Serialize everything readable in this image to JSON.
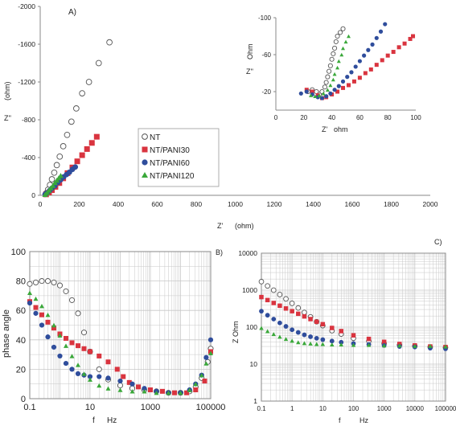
{
  "colors": {
    "NT": "#ffffff",
    "NT/PANI30": "#d9343f",
    "NT/PANI60": "#2f4d9c",
    "NT/PANI120": "#3aa83a",
    "NT_stroke": "#555555",
    "grid": "#c8c8c8"
  },
  "legend": [
    "NT",
    "NT/PANI30",
    "NT/PANI60",
    "NT/PANI120"
  ],
  "chart_data": [
    {
      "id": "A",
      "type": "scatter",
      "panel_label": "A)",
      "xlabel": "Z'",
      "xlabel_unit": "(ohm)",
      "ylabel": "Z''",
      "ylabel_unit": "(ohm)",
      "xlim": [
        0,
        2000
      ],
      "ylim": [
        0,
        -2000
      ],
      "xticks": [
        "0",
        "200",
        "400",
        "600",
        "800",
        "1000",
        "1200",
        "1400",
        "1600",
        "1800",
        "2000"
      ],
      "yticks": [
        "0",
        "-400",
        "-800",
        "-1200",
        "-1600",
        "-2000"
      ],
      "ytick_values": [
        0,
        -400,
        -800,
        -1200,
        -1600,
        -2000
      ],
      "grid": false,
      "legend_position": "center",
      "series": [
        {
          "name": "NT",
          "marker": "circle",
          "x": [
            30,
            40,
            50,
            60,
            72,
            85,
            100,
            118,
            138,
            160,
            185,
            215,
            250,
            300,
            355
          ],
          "y": [
            -20,
            -60,
            -110,
            -170,
            -240,
            -320,
            -410,
            -520,
            -640,
            -780,
            -920,
            -1080,
            -1200,
            -1400,
            -1620
          ]
        },
        {
          "name": "NT/PANI30",
          "marker": "square",
          "x": [
            30,
            45,
            60,
            78,
            98,
            118,
            140,
            165,
            190,
            215,
            240,
            265,
            290
          ],
          "y": [
            -10,
            -30,
            -55,
            -90,
            -130,
            -180,
            -235,
            -295,
            -360,
            -425,
            -490,
            -555,
            -620
          ]
        },
        {
          "name": "NT/PANI60",
          "marker": "circle",
          "x": [
            25,
            35,
            48,
            60,
            75,
            90,
            105,
            120,
            135,
            150,
            165,
            180
          ],
          "y": [
            -10,
            -25,
            -50,
            -75,
            -100,
            -135,
            -165,
            -195,
            -220,
            -245,
            -275,
            -300
          ]
        },
        {
          "name": "NT/PANI120",
          "marker": "triangle",
          "x": [
            25,
            35,
            45,
            55,
            65,
            75,
            85,
            95,
            105
          ],
          "y": [
            -10,
            -30,
            -55,
            -80,
            -105,
            -135,
            -160,
            -185,
            -210
          ]
        }
      ]
    },
    {
      "id": "A-inset",
      "type": "scatter",
      "xlabel": "Z'",
      "xlabel_unit": "ohm",
      "ylabel": "Z''",
      "ylabel_unit": "Ohm",
      "xlim": [
        0,
        100
      ],
      "ylim": [
        0,
        -100
      ],
      "xticks": [
        "0",
        "20",
        "40",
        "60",
        "80",
        "100"
      ],
      "yticks": [
        "-20",
        "-60",
        "-100"
      ],
      "ytick_values": [
        -20,
        -60,
        -100
      ],
      "grid": false,
      "series": [
        {
          "name": "NT",
          "marker": "circle",
          "x": [
            23,
            26,
            29,
            31,
            33,
            35,
            36,
            37,
            38,
            39,
            40,
            41,
            42,
            43,
            44,
            46,
            48
          ],
          "y": [
            -20,
            -22,
            -20,
            -17,
            -20,
            -25,
            -30,
            -36,
            -42,
            -48,
            -55,
            -61,
            -67,
            -74,
            -80,
            -84,
            -88
          ]
        },
        {
          "name": "NT/PANI30",
          "marker": "square",
          "x": [
            22,
            26,
            30,
            33,
            36,
            40,
            44,
            48,
            52,
            56,
            60,
            64,
            68,
            72,
            76,
            80,
            84,
            88,
            92,
            96,
            98
          ],
          "y": [
            -22,
            -20,
            -16,
            -13,
            -14,
            -17,
            -20,
            -24,
            -27,
            -31,
            -35,
            -40,
            -44,
            -49,
            -54,
            -59,
            -63,
            -68,
            -72,
            -77,
            -80
          ]
        },
        {
          "name": "NT/PANI60",
          "marker": "circle",
          "x": [
            18,
            22,
            26,
            30,
            33,
            36,
            39,
            42,
            45,
            48,
            51,
            54,
            57,
            60,
            63,
            66,
            69,
            72,
            75,
            78
          ],
          "y": [
            -18,
            -20,
            -17,
            -14,
            -13,
            -15,
            -18,
            -22,
            -26,
            -31,
            -36,
            -41,
            -47,
            -53,
            -59,
            -65,
            -71,
            -78,
            -85,
            -93
          ]
        },
        {
          "name": "NT/PANI120",
          "marker": "triangle",
          "x": [
            25,
            28,
            31,
            34,
            37,
            39,
            41,
            42,
            44,
            45,
            47,
            48,
            50,
            52
          ],
          "y": [
            -16,
            -15,
            -16,
            -18,
            -22,
            -27,
            -33,
            -39,
            -46,
            -53,
            -60,
            -67,
            -74,
            -80
          ]
        }
      ]
    },
    {
      "id": "B",
      "type": "line",
      "panel_label": "B)",
      "xlabel": "f",
      "xlabel_unit": "Hz",
      "ylabel": "phase angle",
      "xscale": "log",
      "xlim": [
        0.1,
        100000
      ],
      "ylim": [
        0,
        100
      ],
      "xticks": [
        "0.1",
        "10",
        "1000",
        "100000"
      ],
      "xtick_values": [
        0.1,
        10,
        1000,
        100000
      ],
      "yticks": [
        "0",
        "20",
        "40",
        "60",
        "80",
        "100"
      ],
      "grid": true,
      "series": [
        {
          "name": "NT",
          "marker": "circle",
          "logx": [
            -1,
            -0.8,
            -0.6,
            -0.4,
            -0.2,
            0,
            0.2,
            0.4,
            0.6,
            0.8,
            1,
            1.3,
            1.6,
            2,
            2.4,
            2.8,
            3.2,
            3.6,
            4,
            4.3,
            4.5,
            4.7,
            4.9,
            5
          ],
          "y": [
            78,
            79,
            80,
            80,
            79,
            77,
            73,
            67,
            58,
            45,
            32,
            20,
            13,
            9,
            7,
            6,
            5,
            4,
            4,
            5,
            8,
            14,
            25,
            34
          ]
        },
        {
          "name": "NT/PANI30",
          "marker": "square",
          "logx": [
            -1,
            -0.8,
            -0.6,
            -0.4,
            -0.2,
            0,
            0.2,
            0.4,
            0.6,
            0.8,
            1,
            1.3,
            1.6,
            1.9,
            2.1,
            2.3,
            2.6,
            3,
            3.4,
            3.8,
            4.2,
            4.5,
            4.8,
            5
          ],
          "y": [
            66,
            62,
            57,
            52,
            48,
            44,
            41,
            38,
            36,
            34,
            32,
            29,
            25,
            20,
            15,
            11,
            8,
            6,
            5,
            4,
            4,
            6,
            12,
            32
          ]
        },
        {
          "name": "NT/PANI60",
          "marker": "circle",
          "logx": [
            -1,
            -0.8,
            -0.6,
            -0.4,
            -0.2,
            0,
            0.2,
            0.4,
            0.6,
            0.8,
            1,
            1.3,
            1.6,
            2,
            2.4,
            2.8,
            3.2,
            3.6,
            4,
            4.3,
            4.5,
            4.7,
            4.85,
            5
          ],
          "y": [
            65,
            58,
            50,
            42,
            35,
            29,
            24,
            20,
            17,
            16,
            15,
            15,
            14,
            12,
            10,
            7,
            5,
            4,
            4,
            6,
            10,
            16,
            28,
            40
          ]
        },
        {
          "name": "NT/PANI120",
          "marker": "triangle",
          "logx": [
            -1,
            -0.8,
            -0.6,
            -0.4,
            -0.2,
            0,
            0.2,
            0.4,
            0.6,
            0.8,
            1,
            1.3,
            1.6,
            2,
            2.4,
            2.8,
            3.2,
            3.6,
            4,
            4.3,
            4.5,
            4.7,
            4.85,
            5
          ],
          "y": [
            72,
            68,
            63,
            57,
            50,
            43,
            36,
            29,
            23,
            17,
            13,
            9,
            7,
            6,
            5,
            5,
            4,
            4,
            4,
            6,
            10,
            16,
            24,
            31
          ]
        }
      ]
    },
    {
      "id": "C",
      "type": "line",
      "panel_label": "C)",
      "xlabel": "f",
      "xlabel_unit": "Hz",
      "ylabel": "Z Ohm",
      "xscale": "log",
      "yscale": "log",
      "xlim": [
        0.1,
        100000
      ],
      "ylim": [
        1,
        10000
      ],
      "xticks": [
        "0.1",
        "1",
        "10",
        "100",
        "1000",
        "10000",
        "100000"
      ],
      "xtick_values": [
        0.1,
        1,
        10,
        100,
        1000,
        10000,
        100000
      ],
      "yticks": [
        "1",
        "10",
        "100",
        "1000",
        "10000"
      ],
      "ytick_values": [
        1,
        10,
        100,
        1000,
        10000
      ],
      "grid": true,
      "series": [
        {
          "name": "NT",
          "marker": "circle",
          "logx": [
            -1,
            -0.8,
            -0.6,
            -0.4,
            -0.2,
            0,
            0.2,
            0.4,
            0.6,
            0.8,
            1,
            1.3,
            1.6,
            2,
            2.5,
            3,
            3.5,
            4,
            4.5,
            5
          ],
          "y": [
            1700,
            1300,
            1000,
            760,
            580,
            440,
            330,
            250,
            190,
            140,
            110,
            80,
            65,
            50,
            42,
            36,
            33,
            31,
            29,
            28
          ]
        },
        {
          "name": "NT/PANI30",
          "marker": "square",
          "logx": [
            -1,
            -0.8,
            -0.6,
            -0.4,
            -0.2,
            0,
            0.2,
            0.4,
            0.6,
            0.8,
            1,
            1.3,
            1.6,
            2,
            2.5,
            3,
            3.5,
            4,
            4.5,
            5
          ],
          "y": [
            650,
            540,
            450,
            380,
            320,
            270,
            230,
            195,
            165,
            140,
            120,
            95,
            78,
            60,
            48,
            40,
            35,
            32,
            30,
            29
          ]
        },
        {
          "name": "NT/PANI60",
          "marker": "circle",
          "logx": [
            -1,
            -0.8,
            -0.6,
            -0.4,
            -0.2,
            0,
            0.2,
            0.4,
            0.6,
            0.8,
            1,
            1.3,
            1.6,
            2,
            2.5,
            3,
            3.5,
            4,
            4.5,
            5
          ],
          "y": [
            270,
            210,
            165,
            130,
            105,
            85,
            72,
            62,
            55,
            50,
            46,
            42,
            39,
            36,
            34,
            32,
            30,
            29,
            27,
            26
          ]
        },
        {
          "name": "NT/PANI120",
          "marker": "triangle",
          "logx": [
            -1,
            -0.8,
            -0.6,
            -0.4,
            -0.2,
            0,
            0.2,
            0.4,
            0.6,
            0.8,
            1,
            1.3,
            1.6,
            2,
            2.5,
            3,
            3.5,
            4,
            4.5,
            5
          ],
          "y": [
            95,
            78,
            65,
            55,
            48,
            43,
            39,
            37,
            36,
            35,
            35,
            34,
            34,
            33,
            33,
            32,
            32,
            31,
            31,
            30
          ]
        }
      ]
    }
  ]
}
